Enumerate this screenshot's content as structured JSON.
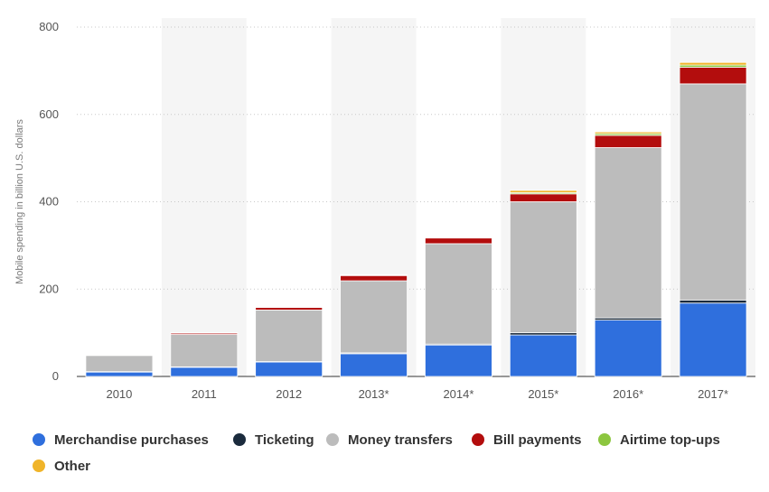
{
  "chart_data": {
    "type": "bar",
    "stacked": true,
    "title": "",
    "xlabel": "",
    "ylabel": "Mobile spending in billion U.S. dollars",
    "categories": [
      "2010",
      "2011",
      "2012",
      "2013*",
      "2014*",
      "2015*",
      "2016*",
      "2017*"
    ],
    "ylim": [
      0,
      800
    ],
    "yticks": [
      0,
      200,
      400,
      600,
      800
    ],
    "grid": "horizontal dotted",
    "legend_position": "bottom",
    "series": [
      {
        "name": "Merchandise purchases",
        "color": "#2f6fdd",
        "values": [
          10,
          21,
          33,
          52,
          72,
          95,
          129,
          168
        ]
      },
      {
        "name": "Ticketing",
        "color": "#1b2b3d",
        "values": [
          1,
          1,
          1,
          2,
          2,
          5,
          5,
          7
        ]
      },
      {
        "name": "Money transfers",
        "color": "#bcbcbc",
        "values": [
          37,
          74,
          118,
          165,
          230,
          300,
          390,
          495
        ]
      },
      {
        "name": "Bill payments",
        "color": "#b30d0d",
        "values": [
          1,
          3,
          6,
          12,
          13,
          18,
          28,
          38
        ]
      },
      {
        "name": "Airtime top-ups",
        "color": "#8cc63f",
        "values": [
          0.5,
          0.5,
          1,
          1,
          1,
          3,
          4,
          5
        ]
      },
      {
        "name": "Other",
        "color": "#f0b429",
        "values": [
          0.5,
          0.5,
          1,
          1,
          1,
          5,
          4,
          6
        ]
      }
    ]
  }
}
